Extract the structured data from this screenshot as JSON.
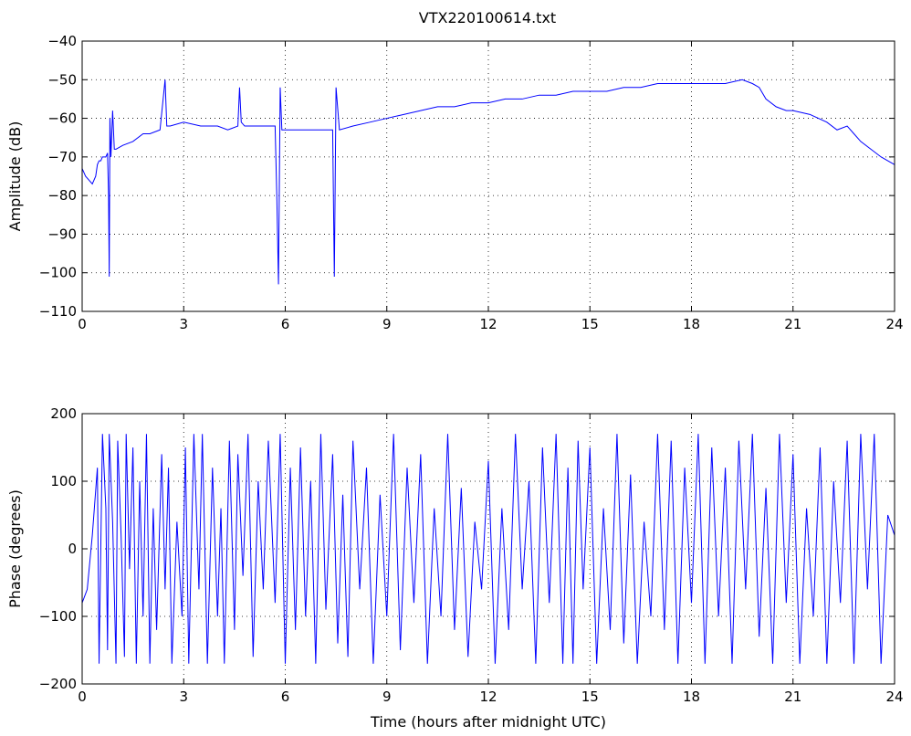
{
  "figure": {
    "title": "VTX220100614.txt",
    "line_color": "#0000ff",
    "grid": "dotted"
  },
  "chart_data": [
    {
      "type": "line",
      "title": "VTX220100614.txt",
      "xlabel": "",
      "ylabel": "Amplitude (dB)",
      "xlim": [
        0,
        24
      ],
      "ylim": [
        -110,
        -40
      ],
      "xticks": [
        0,
        3,
        6,
        9,
        12,
        15,
        18,
        21,
        24
      ],
      "yticks": [
        -40,
        -50,
        -60,
        -70,
        -80,
        -90,
        -100,
        -110
      ],
      "grid": true,
      "series": [
        {
          "color": "#0000ff",
          "x": [
            0,
            0.1,
            0.2,
            0.3,
            0.4,
            0.45,
            0.5,
            0.55,
            0.6,
            0.7,
            0.75,
            0.78,
            0.8,
            0.82,
            0.85,
            0.9,
            0.95,
            1.0,
            1.2,
            1.5,
            1.8,
            2.0,
            2.3,
            2.45,
            2.5,
            2.6,
            3.0,
            3.5,
            4.0,
            4.3,
            4.6,
            4.65,
            4.7,
            4.8,
            5.0,
            5.5,
            5.7,
            5.75,
            5.8,
            5.85,
            5.9,
            6.0,
            6.5,
            7.0,
            7.4,
            7.45,
            7.5,
            7.6,
            8.0,
            8.5,
            9.0,
            9.5,
            10.0,
            10.5,
            11.0,
            11.5,
            12.0,
            12.5,
            13.0,
            13.5,
            14.0,
            14.5,
            15.0,
            15.5,
            16.0,
            16.5,
            17.0,
            17.5,
            18.0,
            18.5,
            19.0,
            19.5,
            19.8,
            20.0,
            20.2,
            20.5,
            20.8,
            21.0,
            21.5,
            22.0,
            22.3,
            22.6,
            22.8,
            23.0,
            23.3,
            23.6,
            23.8,
            24.0
          ],
          "y": [
            -73,
            -75,
            -76,
            -77,
            -75,
            -72,
            -71,
            -71,
            -70,
            -70,
            -69,
            -80,
            -101,
            -60,
            -70,
            -58,
            -68,
            -68,
            -67,
            -66,
            -64,
            -64,
            -63,
            -50,
            -62,
            -62,
            -61,
            -62,
            -62,
            -63,
            -62,
            -52,
            -61,
            -62,
            -62,
            -62,
            -62,
            -80,
            -103,
            -52,
            -63,
            -63,
            -63,
            -63,
            -63,
            -101,
            -52,
            -63,
            -62,
            -61,
            -60,
            -59,
            -58,
            -57,
            -57,
            -56,
            -56,
            -55,
            -55,
            -54,
            -54,
            -53,
            -53,
            -53,
            -52,
            -52,
            -51,
            -51,
            -51,
            -51,
            -51,
            -50,
            -51,
            -52,
            -55,
            -57,
            -58,
            -58,
            -59,
            -61,
            -63,
            -62,
            -64,
            -66,
            -68,
            -70,
            -71,
            -72
          ]
        }
      ]
    },
    {
      "type": "line",
      "title": "",
      "xlabel": "Time (hours after midnight UTC)",
      "ylabel": "Phase (degrees)",
      "xlim": [
        0,
        24
      ],
      "ylim": [
        -200,
        200
      ],
      "xticks": [
        0,
        3,
        6,
        9,
        12,
        15,
        18,
        21,
        24
      ],
      "yticks": [
        200,
        100,
        0,
        -100,
        -200
      ],
      "grid": true,
      "series": [
        {
          "color": "#0000ff",
          "x": [
            0,
            0.15,
            0.3,
            0.45,
            0.5,
            0.6,
            0.7,
            0.75,
            0.8,
            0.9,
            1.0,
            1.05,
            1.15,
            1.25,
            1.3,
            1.4,
            1.5,
            1.6,
            1.7,
            1.8,
            1.9,
            2.0,
            2.1,
            2.2,
            2.35,
            2.45,
            2.55,
            2.65,
            2.8,
            2.95,
            3.05,
            3.15,
            3.3,
            3.45,
            3.55,
            3.7,
            3.85,
            4.0,
            4.1,
            4.2,
            4.35,
            4.5,
            4.6,
            4.75,
            4.9,
            5.05,
            5.2,
            5.35,
            5.5,
            5.7,
            5.85,
            6.0,
            6.15,
            6.3,
            6.45,
            6.6,
            6.75,
            6.9,
            7.05,
            7.2,
            7.4,
            7.55,
            7.7,
            7.85,
            8.0,
            8.2,
            8.4,
            8.6,
            8.8,
            9.0,
            9.2,
            9.4,
            9.6,
            9.8,
            10.0,
            10.2,
            10.4,
            10.6,
            10.8,
            11.0,
            11.2,
            11.4,
            11.6,
            11.8,
            12.0,
            12.2,
            12.4,
            12.6,
            12.8,
            13.0,
            13.2,
            13.4,
            13.6,
            13.8,
            14.0,
            14.2,
            14.35,
            14.5,
            14.65,
            14.8,
            15.0,
            15.2,
            15.4,
            15.6,
            15.8,
            16.0,
            16.2,
            16.4,
            16.6,
            16.8,
            17.0,
            17.2,
            17.4,
            17.6,
            17.8,
            18.0,
            18.2,
            18.4,
            18.6,
            18.8,
            19.0,
            19.2,
            19.4,
            19.6,
            19.8,
            20.0,
            20.2,
            20.4,
            20.6,
            20.8,
            21.0,
            21.2,
            21.4,
            21.6,
            21.8,
            22.0,
            22.2,
            22.4,
            22.6,
            22.8,
            23.0,
            23.2,
            23.4,
            23.6,
            23.8,
            24.0
          ],
          "y": [
            -80,
            -60,
            20,
            120,
            -170,
            170,
            60,
            -150,
            170,
            40,
            -170,
            160,
            20,
            -160,
            170,
            -30,
            150,
            -170,
            100,
            -100,
            170,
            -170,
            60,
            -120,
            140,
            -60,
            120,
            -170,
            40,
            -100,
            150,
            -170,
            170,
            -60,
            170,
            -170,
            120,
            -100,
            60,
            -170,
            160,
            -120,
            140,
            -40,
            170,
            -160,
            100,
            -60,
            160,
            -80,
            170,
            -170,
            120,
            -120,
            150,
            -100,
            100,
            -170,
            170,
            -90,
            140,
            -140,
            80,
            -160,
            160,
            -60,
            120,
            -170,
            80,
            -100,
            170,
            -150,
            120,
            -80,
            140,
            -170,
            60,
            -100,
            170,
            -120,
            90,
            -160,
            40,
            -60,
            130,
            -170,
            60,
            -120,
            170,
            -60,
            100,
            -170,
            150,
            -80,
            170,
            -170,
            120,
            -170,
            160,
            -60,
            150,
            -170,
            60,
            -120,
            170,
            -140,
            110,
            -170,
            40,
            -100,
            170,
            -120,
            160,
            -170,
            120,
            -80,
            170,
            -170,
            150,
            -100,
            120,
            -170,
            160,
            -60,
            170,
            -130,
            90,
            -170,
            170,
            -80,
            140,
            -170,
            60,
            -100,
            150,
            -170,
            100,
            -80,
            160,
            -170,
            170,
            -60,
            170,
            -170,
            50,
            20
          ]
        }
      ]
    }
  ]
}
